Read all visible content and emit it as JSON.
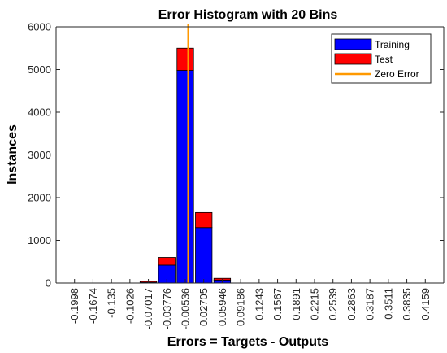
{
  "chart_data": {
    "type": "bar",
    "title": "Error Histogram with 20 Bins",
    "xlabel": "Errors = Targets - Outputs",
    "ylabel": "Instances",
    "ylim": [
      0,
      6000
    ],
    "yticks": [
      "0",
      "1000",
      "2000",
      "3000",
      "4000",
      "5000",
      "6000"
    ],
    "categories": [
      "-0.1998",
      "-0.1674",
      "-0.135",
      "-0.1026",
      "-0.07017",
      "-0.03776",
      "-0.00536",
      "0.02705",
      "0.05946",
      "0.09186",
      "0.1243",
      "0.1567",
      "0.1891",
      "0.2215",
      "0.2539",
      "0.2863",
      "0.3187",
      "0.3511",
      "0.3835",
      "0.4159"
    ],
    "stacked": true,
    "series": [
      {
        "name": "Training",
        "color": "#0000ff",
        "values": [
          0,
          0,
          0,
          0,
          20,
          420,
          4980,
          1300,
          70,
          0,
          0,
          0,
          0,
          0,
          0,
          0,
          0,
          0,
          0,
          0
        ]
      },
      {
        "name": "Test",
        "color": "#ff0000",
        "values": [
          0,
          0,
          0,
          0,
          25,
          180,
          520,
          350,
          40,
          0,
          0,
          0,
          0,
          0,
          0,
          0,
          0,
          0,
          0,
          0
        ]
      }
    ],
    "zero_error": {
      "name": "Zero Error",
      "color": "#ff9900",
      "x": 0
    },
    "legend_position": "top-right",
    "grid": false
  }
}
